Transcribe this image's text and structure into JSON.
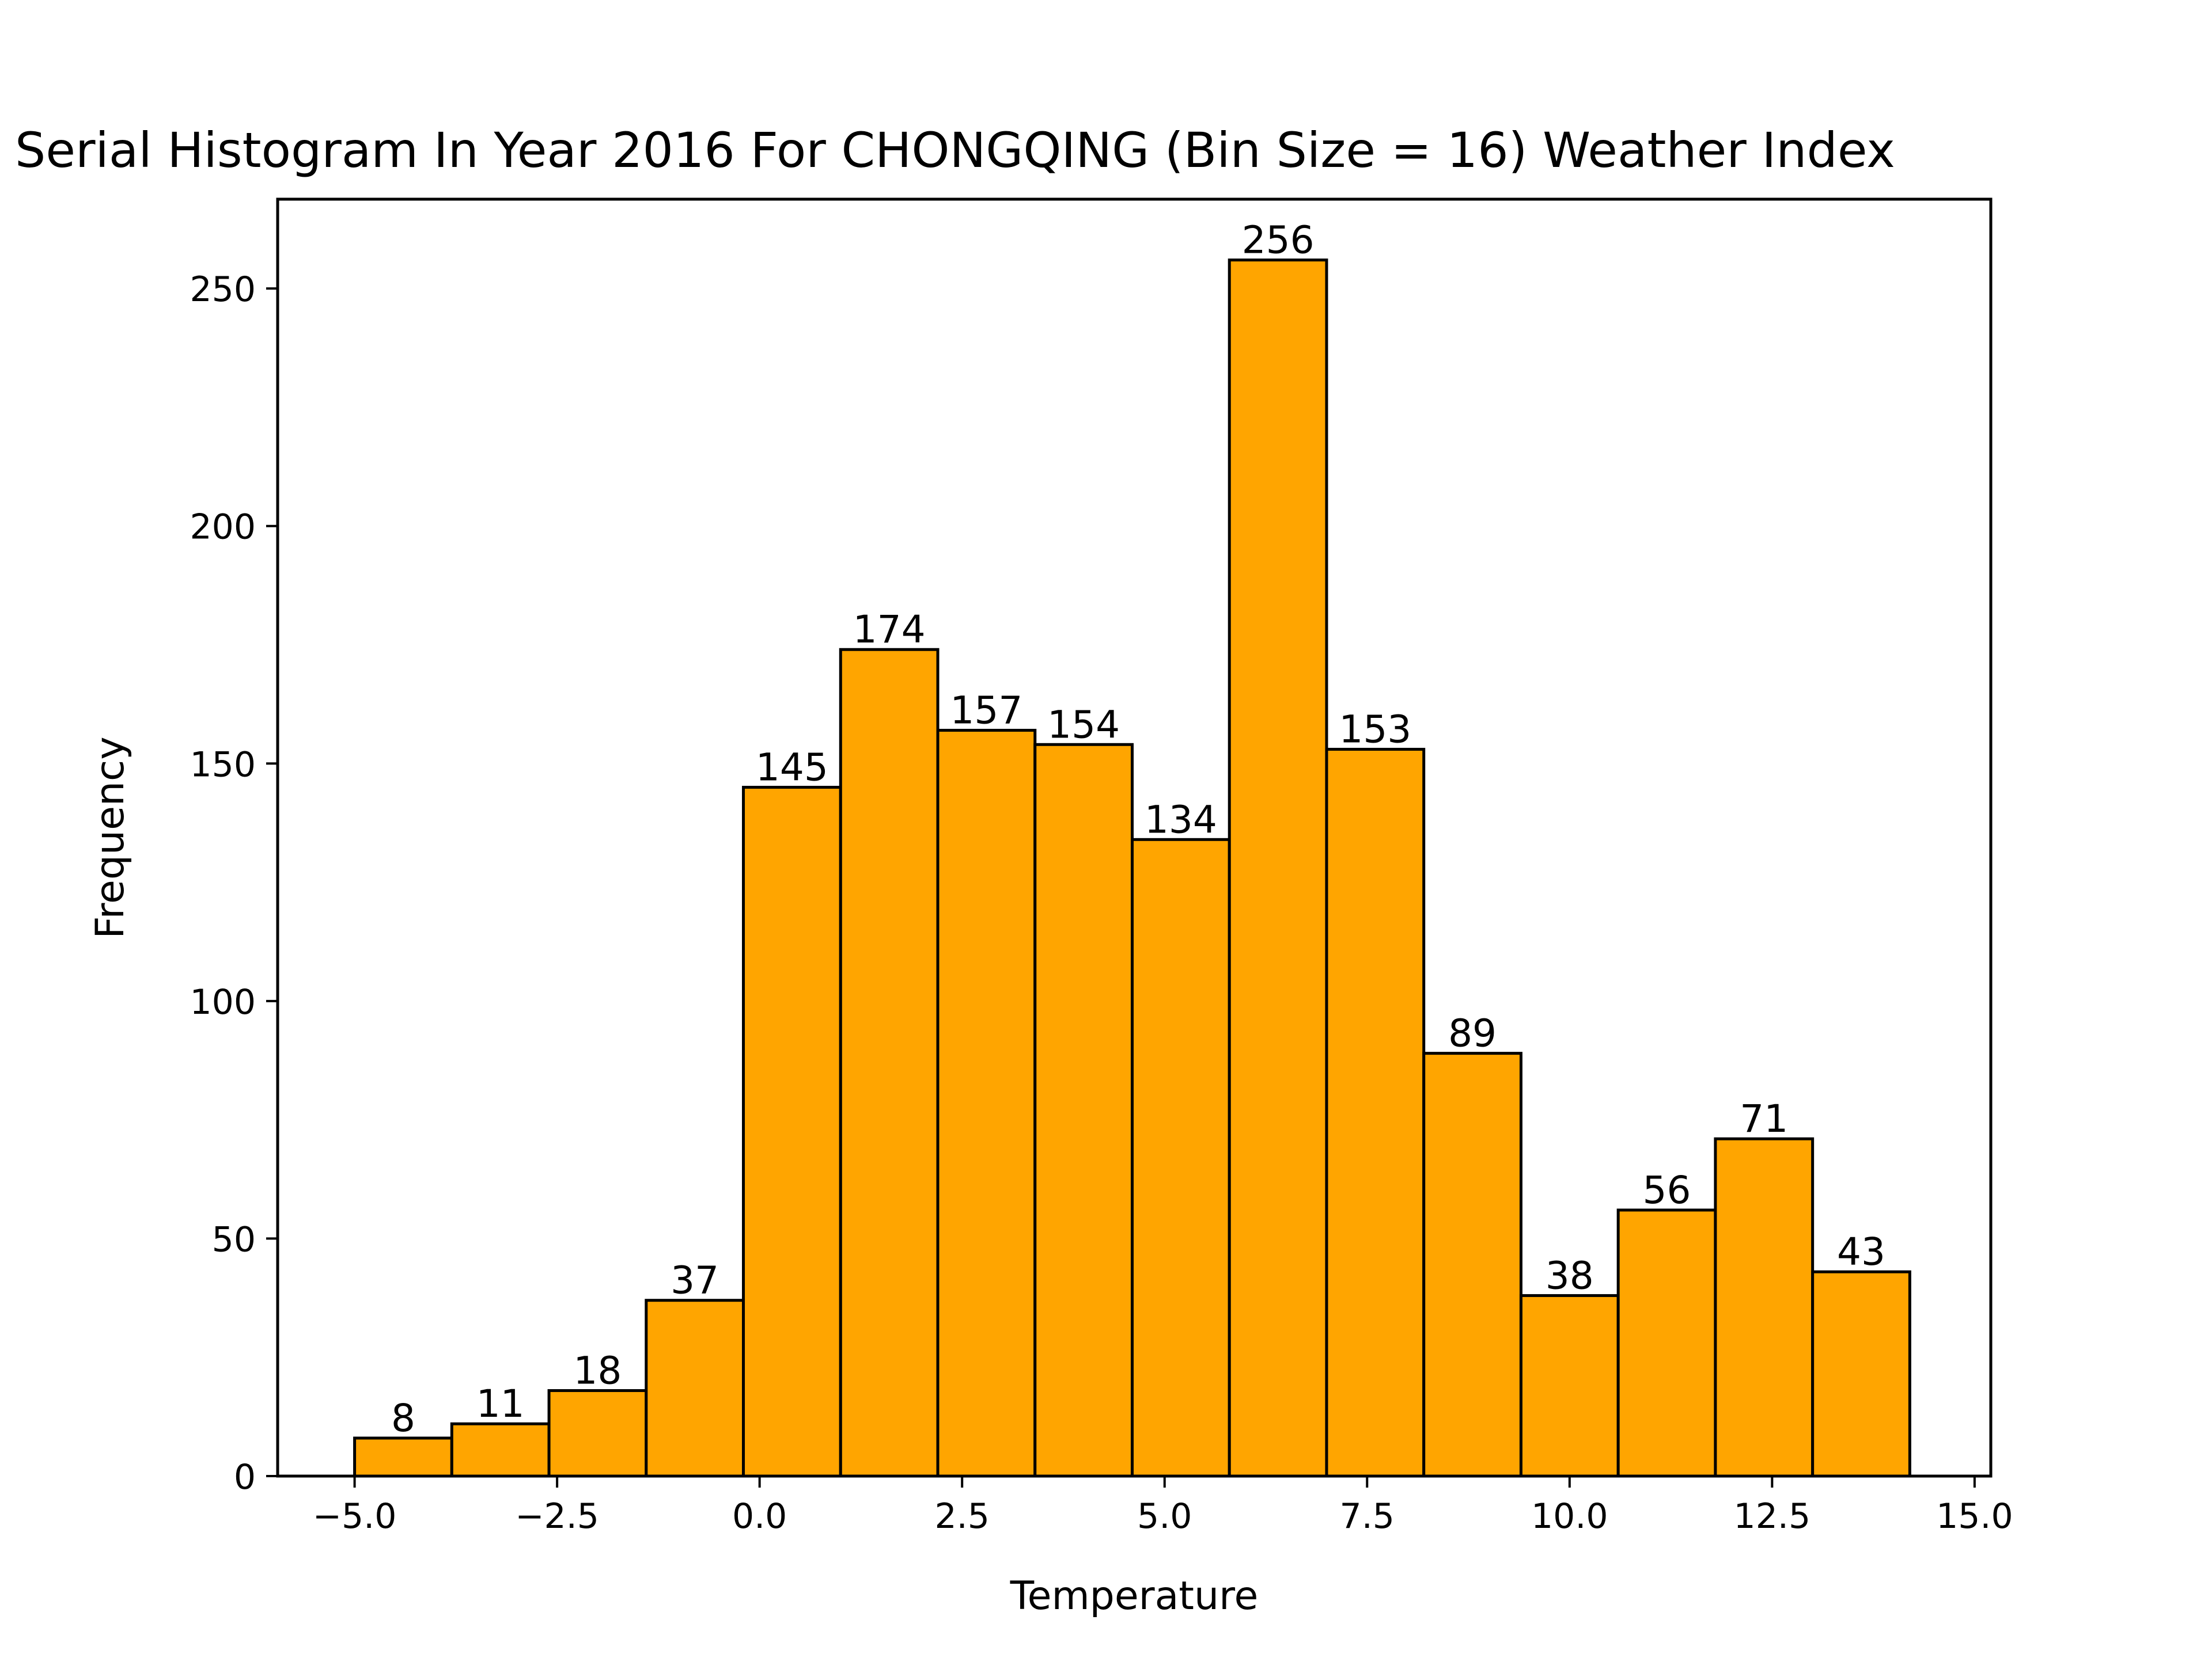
{
  "chart_data": {
    "type": "bar",
    "title": "Serial Histogram In Year 2016 For CHONGQING (Bin Size = 16) Weather Index",
    "xlabel": "Temperature",
    "ylabel": "Frequency",
    "xlim": [
      -5.95,
      15.2
    ],
    "ylim": [
      0,
      268.8
    ],
    "bin_start": -5.0,
    "bin_width": 1.2,
    "values": [
      8,
      11,
      18,
      37,
      145,
      174,
      157,
      154,
      134,
      256,
      153,
      89,
      38,
      56,
      71,
      43
    ],
    "bar_labels": [
      "8",
      "11",
      "18",
      "37",
      "145",
      "174",
      "157",
      "154",
      "134",
      "256",
      "153",
      "89",
      "38",
      "56",
      "71",
      "43"
    ],
    "x_ticks": [
      -5.0,
      -2.5,
      0.0,
      2.5,
      5.0,
      7.5,
      10.0,
      12.5,
      15.0
    ],
    "x_tick_labels": [
      "−5.0",
      "−2.5",
      "0.0",
      "2.5",
      "5.0",
      "7.5",
      "10.0",
      "12.5",
      "15.0"
    ],
    "y_ticks": [
      0,
      50,
      100,
      150,
      200,
      250
    ],
    "y_tick_labels": [
      "0",
      "50",
      "100",
      "150",
      "200",
      "250"
    ],
    "bar_color": "#ffa500",
    "edge_color": "#000000",
    "grid": false
  }
}
